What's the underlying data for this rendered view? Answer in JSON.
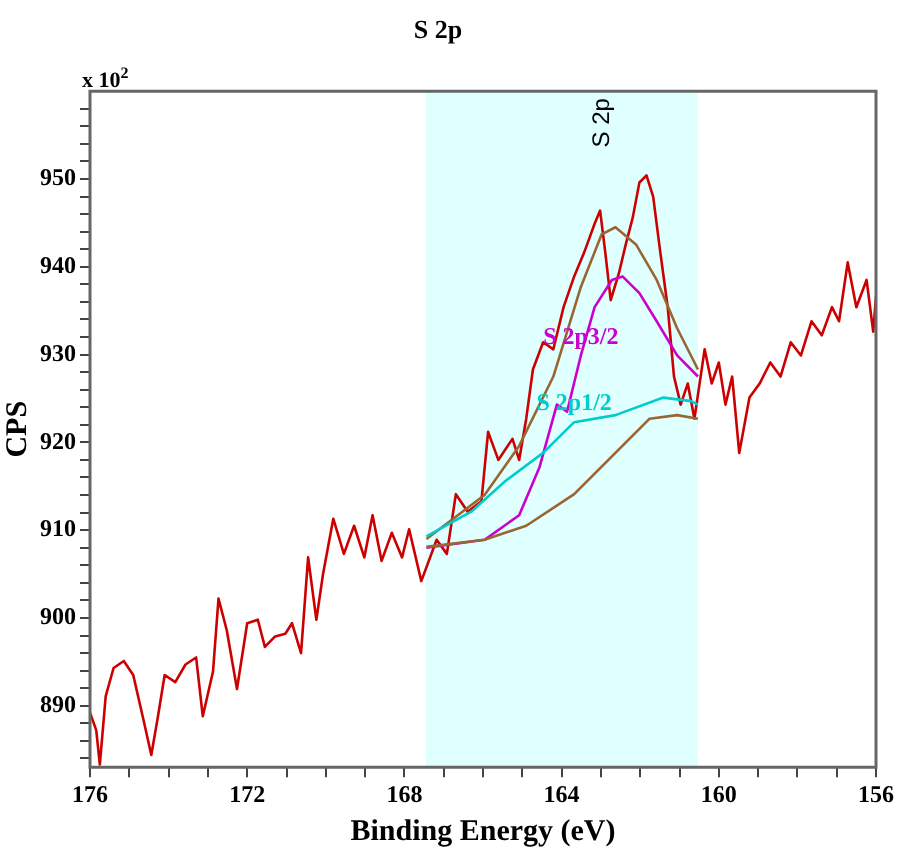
{
  "chart_data": {
    "type": "line",
    "title": "S 2p",
    "xlabel": "Binding Energy (eV)",
    "ylabel": "CPS",
    "annotations": [
      "x 10$^{2}$",
      "S 2p"
    ],
    "xlim": [
      176,
      156
    ],
    "xticks": [
      176,
      {
        "value": 175,
        "label": null
      },
      {
        "value": 174,
        "label": null
      },
      {
        "value": 173,
        "label": null
      },
      172,
      {
        "value": 171,
        "label": null
      },
      {
        "value": 170,
        "label": null
      },
      {
        "value": 169,
        "label": null
      },
      168,
      {
        "value": 167,
        "label": null
      },
      {
        "value": 166,
        "label": null
      },
      {
        "value": 165,
        "label": null
      },
      164,
      {
        "value": 163,
        "label": null
      },
      {
        "value": 162,
        "label": null
      },
      {
        "value": 161,
        "label": null
      },
      160,
      {
        "value": 159,
        "label": null
      },
      {
        "value": 158,
        "label": null
      },
      {
        "value": 157,
        "label": null
      },
      156
    ],
    "ylim": [
      883,
      960
    ],
    "yticks": [
      {
        "value": 884,
        "label": null
      },
      {
        "value": 886,
        "label": null
      },
      {
        "value": 888,
        "label": null
      },
      890,
      {
        "value": 892,
        "label": null
      },
      {
        "value": 894,
        "label": null
      },
      {
        "value": 896,
        "label": null
      },
      {
        "value": 898,
        "label": null
      },
      900,
      {
        "value": 902,
        "label": null
      },
      {
        "value": 904,
        "label": null
      },
      {
        "value": 906,
        "label": null
      },
      {
        "value": 908,
        "label": null
      },
      910,
      {
        "value": 912,
        "label": null
      },
      {
        "value": 914,
        "label": null
      },
      {
        "value": 916,
        "label": null
      },
      {
        "value": 918,
        "label": null
      },
      920,
      {
        "value": 922,
        "label": null
      },
      {
        "value": 924,
        "label": null
      },
      {
        "value": 926,
        "label": null
      },
      {
        "value": 928,
        "label": null
      },
      930,
      {
        "value": 932,
        "label": null
      },
      {
        "value": 934,
        "label": null
      },
      {
        "value": 936,
        "label": null
      },
      {
        "value": 938,
        "label": null
      },
      940,
      {
        "value": 942,
        "label": null
      },
      {
        "value": 944,
        "label": null
      },
      {
        "value": 946,
        "label": null
      },
      {
        "value": 948,
        "label": null
      },
      950,
      {
        "value": 952,
        "label": null
      },
      {
        "value": 954,
        "label": null
      },
      {
        "value": 956,
        "label": null
      },
      {
        "value": 958,
        "label": null
      }
    ],
    "bands": [
      {
        "axis": "x",
        "from": 167.45,
        "to": 160.53,
        "color": "#e0ffff"
      }
    ],
    "legend": false,
    "grid": false,
    "series": [
      {
        "color": "#996633",
        "x": [
          167.44,
          165.96,
          164.9,
          163.68,
          162.63,
          161.76,
          161.06,
          160.53
        ],
        "values": [
          908.1,
          908.9,
          910.5,
          914.1,
          918.8,
          922.7,
          923.1,
          922.7
        ]
      },
      {
        "name": "S 2p1/2",
        "color": "#00cccc",
        "x": [
          167.44,
          166.3,
          165.43,
          164.47,
          163.68,
          162.63,
          161.41,
          160.71,
          160.53
        ],
        "values": [
          909.3,
          912.1,
          915.6,
          918.8,
          922.3,
          923.1,
          925.1,
          924.7,
          924.3
        ]
      },
      {
        "name": "S 2p3/2",
        "color": "#cc00cc",
        "x": [
          167.44,
          165.96,
          165.08,
          164.56,
          164.12,
          163.86,
          163.51,
          163.16,
          162.72,
          162.45,
          162.02,
          161.58,
          161.06,
          160.53
        ],
        "values": [
          908,
          908.9,
          911.7,
          917.2,
          924.3,
          923.5,
          929.9,
          935.4,
          938.5,
          938.9,
          937,
          933.8,
          929.9,
          927.5
        ]
      },
      {
        "color": "#996633",
        "x": [
          167.44,
          165.96,
          165.08,
          164.21,
          163.51,
          162.98,
          162.63,
          162.1,
          161.58,
          161.06,
          160.53
        ],
        "values": [
          909,
          914,
          919.6,
          927.5,
          937.7,
          943.7,
          944.5,
          942.5,
          938.5,
          933,
          928.3
        ]
      },
      {
        "color": "#cc0000",
        "x": [
          176,
          175.84,
          175.75,
          175.6,
          175.4,
          175.14,
          174.9,
          174.62,
          174.44,
          174.27,
          174.1,
          173.83,
          173.57,
          173.3,
          173.13,
          172.87,
          172.73,
          172.52,
          172.26,
          172,
          171.73,
          171.55,
          171.29,
          171.03,
          170.86,
          170.63,
          170.45,
          170.24,
          170.07,
          169.81,
          169.54,
          169.28,
          169.02,
          168.81,
          168.58,
          168.32,
          168.06,
          167.88,
          167.57,
          167.18,
          166.92,
          166.69,
          166.39,
          166.04,
          165.87,
          165.61,
          165.25,
          165.08,
          164.9,
          164.73,
          164.47,
          164.21,
          163.95,
          163.68,
          163.42,
          163.16,
          163.02,
          162.89,
          162.75,
          162.54,
          162.37,
          162.19,
          162.02,
          161.84,
          161.67,
          161.49,
          161.3,
          161.14,
          160.97,
          160.79,
          160.62,
          160.36,
          160.18,
          160,
          159.83,
          159.66,
          159.48,
          159.22,
          158.96,
          158.69,
          158.43,
          158.17,
          157.91,
          157.64,
          157.38,
          157.12,
          156.94,
          156.72,
          156.5,
          156.24,
          156.07,
          156
        ],
        "values": [
          889.2,
          887.2,
          883.3,
          891.1,
          894.3,
          895.1,
          893.5,
          888,
          884.4,
          888.8,
          893.5,
          892.7,
          894.7,
          895.5,
          888.8,
          893.9,
          902.2,
          898.6,
          891.9,
          899.4,
          899.8,
          896.7,
          897.9,
          898.2,
          899.4,
          896,
          906.9,
          899.8,
          905,
          911.3,
          907.3,
          910.5,
          906.9,
          911.7,
          906.5,
          909.7,
          906.9,
          910.1,
          904.2,
          908.9,
          907.3,
          914.1,
          912.1,
          913.3,
          921.2,
          918,
          920.4,
          918,
          922.7,
          928.3,
          931.4,
          930.6,
          935.4,
          938.9,
          941.7,
          944.9,
          946.4,
          941.7,
          936.2,
          939.3,
          942.5,
          945.6,
          949.6,
          950.4,
          948,
          941.7,
          935.4,
          927.5,
          924.3,
          926.7,
          922.7,
          930.6,
          926.7,
          929.1,
          924.3,
          927.5,
          918.8,
          925.1,
          926.7,
          929.1,
          927.5,
          931.4,
          929.9,
          933.8,
          932.2,
          935.4,
          933.8,
          940.5,
          935.4,
          938.5,
          932.6,
          936.6
        ]
      }
    ]
  }
}
